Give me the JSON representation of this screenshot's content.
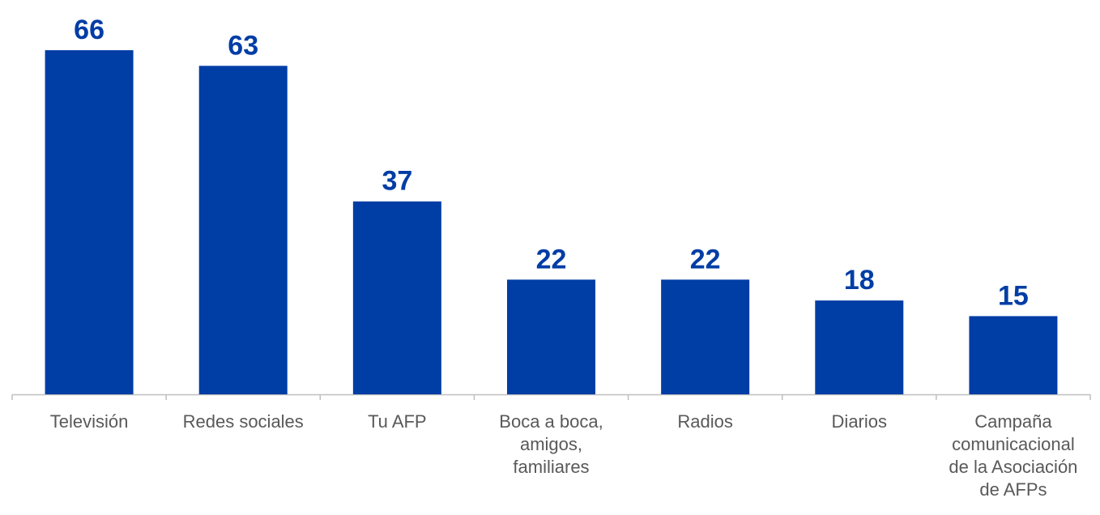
{
  "chart_data": {
    "type": "bar",
    "categories": [
      "Televisión",
      "Redes sociales",
      "Tu AFP",
      "Boca a boca,\namigos,\nfamiliares",
      "Radios",
      "Diarios",
      "Campaña\ncomunicacional\nde la Asociación\nde AFPs"
    ],
    "values": [
      66,
      63,
      37,
      22,
      22,
      18,
      15
    ],
    "title": "",
    "xlabel": "",
    "ylabel": "",
    "ylim": [
      0,
      70
    ],
    "grid": false,
    "data_labels": true,
    "colors": {
      "bar": "#003DA5",
      "label": "#003DA5",
      "axis": "#BFBFBF",
      "category_text": "#595959"
    }
  }
}
